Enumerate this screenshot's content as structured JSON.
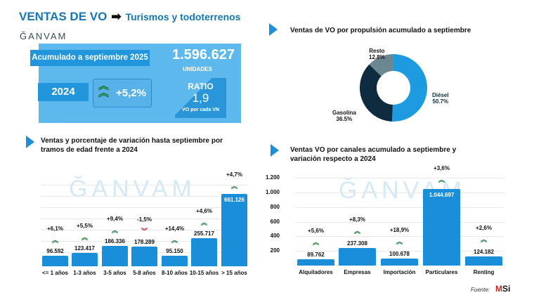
{
  "header": {
    "title": "VENTAS DE VO",
    "subtitle": "Turismos y todoterrenos",
    "logo": "ĞANVAM"
  },
  "kpi": {
    "period_label": "Acumulado a septiembre 2025",
    "total": "1.596.627",
    "total_unit": "UNIDADES",
    "compare_year": "2024",
    "variation": "+5,2%",
    "ratio_label": "RATIO",
    "ratio_value": "1,9",
    "ratio_caption": "VO por cada VN"
  },
  "colors": {
    "accent": "#1a8ed8",
    "up": "#1e7a3a",
    "down": "#c0282d"
  },
  "chart_data": [
    {
      "type": "pie",
      "title": "Ventas de VO por propulsión acumulado a septiembre",
      "donut": true,
      "slices": [
        {
          "label": "Diésel",
          "value": 50.7,
          "display": "50.7%",
          "color": "#1e9be0"
        },
        {
          "label": "Gasolina",
          "value": 36.5,
          "display": "36.5%",
          "color": "#0f2b3f"
        },
        {
          "label": "Resto",
          "value": 12.8,
          "display": "12.8%",
          "color": "#6c8791"
        }
      ]
    },
    {
      "type": "bar",
      "title": "Ventas y porcentaje de variación hasta septiembre por tramos de edad frente a 2024",
      "categories": [
        "<= 1 años",
        "1-3 años",
        "3-5 años",
        "5-8 años",
        "8-10 años",
        "10-15 años",
        "> 15 años"
      ],
      "values": [
        96592,
        123417,
        186336,
        178289,
        95150,
        255717,
        661126
      ],
      "value_labels": [
        "96.592",
        "123.417",
        "186.336",
        "178.289",
        "95.150",
        "255.717",
        "661.126"
      ],
      "variation": [
        "+6,1%",
        "+5,5%",
        "+9,4%",
        "-1,5%",
        "+14,4%",
        "+4,6%",
        "+4,7%"
      ]
    },
    {
      "type": "bar",
      "title": "Ventas VO por canales acumulado a septiembre y variación respecto a 2024",
      "categories": [
        "Alquiladores",
        "Empresas",
        "Importación",
        "Particulares",
        "Renting"
      ],
      "values": [
        89762,
        237308,
        100678,
        1044697,
        124182
      ],
      "value_labels": [
        "89.762",
        "237.308",
        "100.678",
        "1.044.697",
        "124.182"
      ],
      "variation": [
        "+5,6%",
        "+8,3%",
        "+18,9%",
        "+3,6%",
        "+2,6%"
      ],
      "yticks": [
        "200",
        "400",
        "600",
        "800",
        "1.000",
        "1.200"
      ],
      "ylim": [
        0,
        1200000
      ],
      "grid": true
    }
  ],
  "footer": {
    "source_label": "Fuente:",
    "source_logo": "MSI"
  }
}
